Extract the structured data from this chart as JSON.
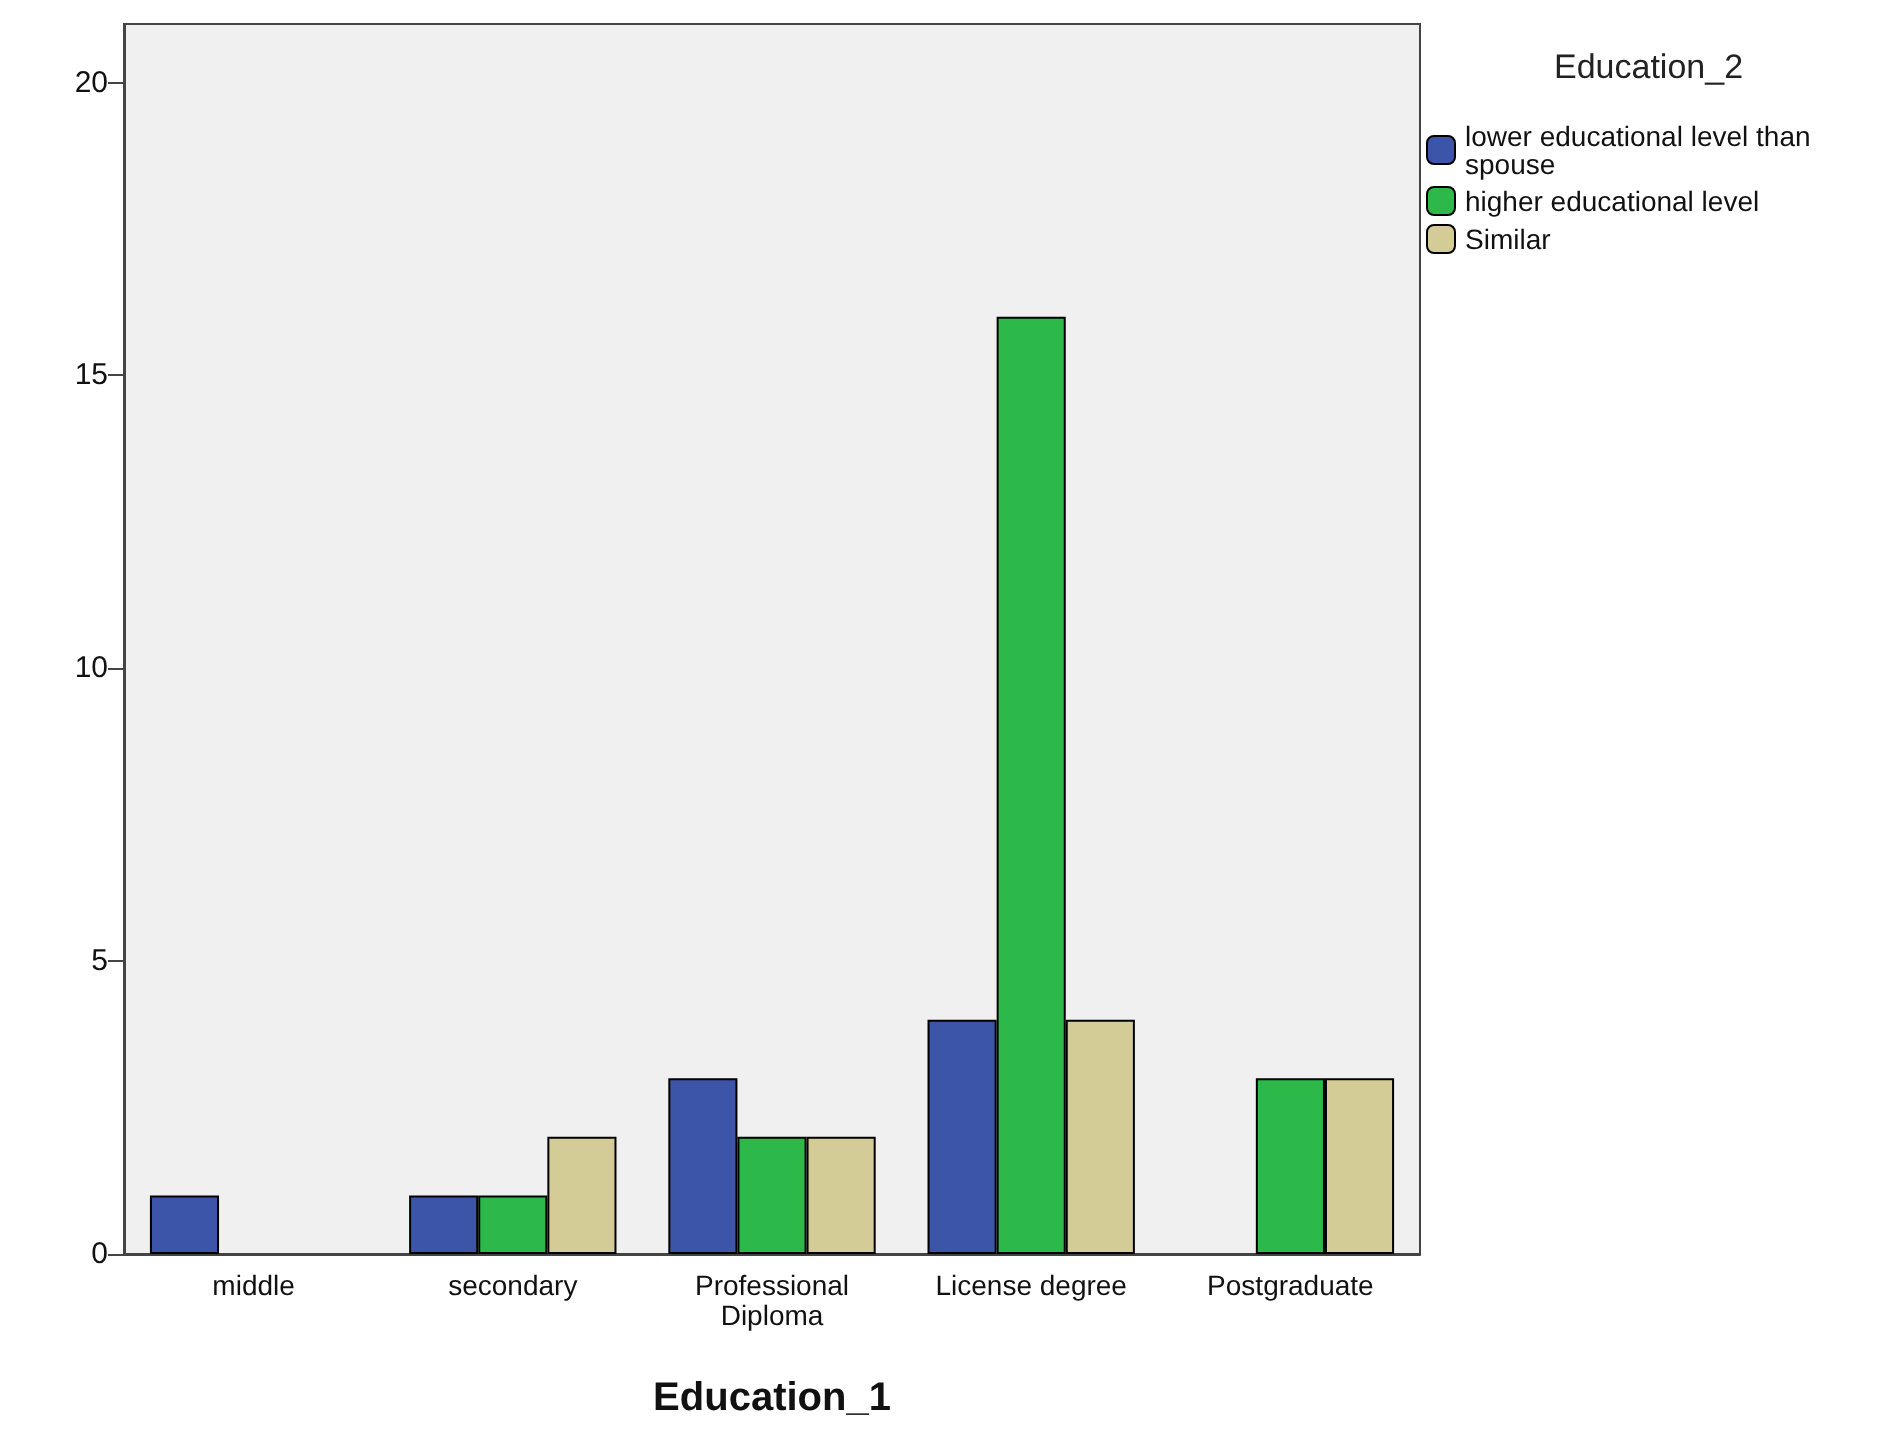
{
  "chart_data": {
    "type": "bar",
    "xlabel": "Education_1",
    "legend_title": "Education_2",
    "legend": "right",
    "grid": false,
    "categories": [
      "middle",
      "secondary",
      "Professional Diploma",
      "License degree",
      "Postgraduate"
    ],
    "series": [
      {
        "name": "lower educational level than spouse",
        "color": "#3d55a8",
        "values": [
          1,
          1,
          3,
          4,
          null
        ]
      },
      {
        "name": "higher educational level",
        "color": "#2db84a",
        "values": [
          null,
          1,
          2,
          16,
          3
        ]
      },
      {
        "name": "Similar",
        "color": "#d4cc96",
        "values": [
          null,
          2,
          2,
          4,
          3
        ]
      }
    ],
    "ylim": [
      0,
      21
    ],
    "yticks": [
      0,
      5,
      10,
      15,
      20
    ]
  }
}
